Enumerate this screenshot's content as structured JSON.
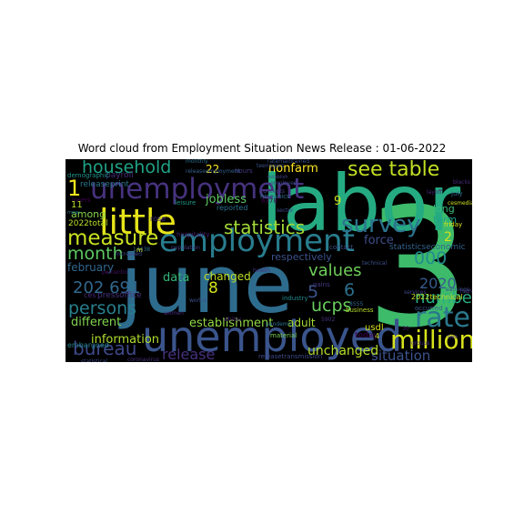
{
  "chart_data": {
    "type": "wordcloud",
    "title": "Word cloud from Employment Situation News Release : 01-06-2022",
    "background": "#000000",
    "words": [
      {
        "text": "3",
        "color": "#3dbb6b"
      },
      {
        "text": "june",
        "color": "#2e6c8e"
      },
      {
        "text": "labor",
        "color": "#25ab82"
      },
      {
        "text": "unemployed",
        "color": "#3a548c"
      },
      {
        "text": "employment",
        "color": "#287d8e"
      },
      {
        "text": "little",
        "color": "#e6e419"
      },
      {
        "text": "unemployment",
        "color": "#46327e"
      },
      {
        "text": "see table",
        "color": "#c2df23"
      },
      {
        "text": "household",
        "color": "#20a386"
      },
      {
        "text": "survey",
        "color": "#2c738e"
      },
      {
        "text": "million",
        "color": "#d8e219"
      },
      {
        "text": "rate",
        "color": "#2a788e"
      },
      {
        "text": "measure",
        "color": "#c8e020"
      },
      {
        "text": "statistics",
        "color": "#a2da37"
      },
      {
        "text": "month",
        "color": "#5ec962"
      },
      {
        "text": "persons",
        "color": "#27808e"
      },
      {
        "text": "bureau",
        "color": "#3e4989"
      },
      {
        "text": "1",
        "color": "#f4e61e"
      },
      {
        "text": "202 691",
        "color": "#31688e"
      },
      {
        "text": "values",
        "color": "#6ece58"
      },
      {
        "text": "000",
        "color": "#228c8d"
      },
      {
        "text": "5",
        "color": "#3a548c"
      },
      {
        "text": "ucps",
        "color": "#67cc5c"
      },
      {
        "text": "6",
        "color": "#2d708e"
      },
      {
        "text": "number",
        "color": "#27ad81"
      },
      {
        "text": "2020",
        "color": "#375b8d"
      },
      {
        "text": "release",
        "color": "#46307e"
      },
      {
        "text": "situation",
        "color": "#3b528b"
      },
      {
        "text": "unchanged",
        "color": "#b5de2b"
      },
      {
        "text": "force",
        "color": "#3d4e8a"
      },
      {
        "text": "different",
        "color": "#7fd34e"
      },
      {
        "text": "information",
        "color": "#b0dd2f"
      },
      {
        "text": "establishment",
        "color": "#90d743"
      },
      {
        "text": "february",
        "color": "#31688e"
      },
      {
        "text": "data",
        "color": "#35b779"
      },
      {
        "text": "changed",
        "color": "#bddf26"
      },
      {
        "text": "nonfarm",
        "color": "#fde725"
      },
      {
        "text": "jobless",
        "color": "#5ec962"
      },
      {
        "text": "respectively",
        "color": "#3b528b"
      },
      {
        "text": "adult",
        "color": "#a5db36"
      },
      {
        "text": "22",
        "color": "#fde725"
      },
      {
        "text": "8",
        "color": "#d2e21b"
      },
      {
        "text": "9",
        "color": "#d5e21a"
      },
      {
        "text": "2",
        "color": "#d2e21b"
      },
      {
        "text": "among",
        "color": "#84d44b"
      },
      {
        "text": "term",
        "color": "#1fa287"
      },
      {
        "text": "long",
        "color": "#38b977"
      },
      {
        "text": "statisticseconomic",
        "color": "#33638d"
      },
      {
        "text": "2022technical",
        "color": "#c8e020"
      },
      {
        "text": "today",
        "color": "#440154"
      },
      {
        "text": "usdl",
        "color": "#d8e219"
      },
      {
        "text": "business",
        "color": "#b8de29"
      },
      {
        "text": "payroll",
        "color": "#472f7d"
      },
      {
        "text": "releaseprint",
        "color": "#2a788e"
      },
      {
        "text": "2022total",
        "color": "#b8de29"
      },
      {
        "text": "pressoffice",
        "color": "#46337f"
      },
      {
        "text": "ces",
        "color": "#482878"
      },
      {
        "text": "embargoed",
        "color": "#26828e"
      },
      {
        "text": "reported",
        "color": "#2d708e"
      },
      {
        "text": "hours",
        "color": "#443a83"
      },
      {
        "text": "hospitality",
        "color": "#481f70"
      },
      {
        "text": "6378",
        "color": "#440154"
      },
      {
        "text": "contact",
        "color": "#3b528b"
      },
      {
        "text": "friday",
        "color": "#dde318"
      },
      {
        "text": "july",
        "color": "#31688e"
      },
      {
        "text": "cesmedia",
        "color": "#d0e11c"
      },
      {
        "text": "services",
        "color": "#3f4788"
      },
      {
        "text": "industry",
        "color": "#23898e"
      },
      {
        "text": "material",
        "color": "#7ad151"
      },
      {
        "text": "pandemic",
        "color": "#2c728e"
      },
      {
        "text": "occurred",
        "color": "#38588c"
      },
      {
        "text": "monthly",
        "color": "#2e6f8e"
      },
      {
        "text": "employed",
        "color": "#3f4889"
      },
      {
        "text": "concepts",
        "color": "#443b84"
      },
      {
        "text": "demographic",
        "color": "#20938c"
      },
      {
        "text": "rose",
        "color": "#46307e"
      },
      {
        "text": "gains",
        "color": "#453781"
      },
      {
        "text": "sector",
        "color": "#3e4a89"
      },
      {
        "text": "higher",
        "color": "#453882"
      },
      {
        "text": "percentin",
        "color": "#471365"
      },
      {
        "text": "releaseemployment",
        "color": "#355f8d"
      },
      {
        "text": "leisure",
        "color": "#1f9a8a"
      },
      {
        "text": "hispanics",
        "color": "#2e6e8e"
      },
      {
        "text": "teenagers",
        "color": "#3b528b"
      },
      {
        "text": "layoff",
        "color": "#482576"
      },
      {
        "text": "losers",
        "color": "#440154"
      },
      {
        "text": "increased",
        "color": "#3f4788"
      },
      {
        "text": "14438",
        "color": "#2d708e"
      },
      {
        "text": "5902",
        "color": "#46337f"
      },
      {
        "text": "8555",
        "color": "#31688e"
      },
      {
        "text": "releasetransmission",
        "color": "#3e4a89"
      },
      {
        "text": "technical",
        "color": "#3b528b"
      },
      {
        "text": "groups",
        "color": "#472f7d"
      },
      {
        "text": "30",
        "color": "#481a6c"
      },
      {
        "text": "two",
        "color": "#46327e"
      },
      {
        "text": "11",
        "color": "#b5de2b"
      },
      {
        "text": "4",
        "color": "#c2df23"
      },
      {
        "text": "m",
        "color": "#d0e11c"
      },
      {
        "text": "population",
        "color": "#433e85"
      },
      {
        "text": "worker",
        "color": "#3a548c"
      },
      {
        "text": "women",
        "color": "#472d7b"
      },
      {
        "text": "health",
        "color": "#46337f"
      },
      {
        "text": "earnings",
        "color": "#3b528b"
      },
      {
        "text": "whites",
        "color": "#482173"
      },
      {
        "text": "statistical",
        "color": "#3e4989"
      },
      {
        "text": "coronavirus",
        "color": "#462f7c"
      },
      {
        "text": "ratemaintained",
        "color": "#3b528b"
      },
      {
        "text": "blacks",
        "color": "#472a7a"
      },
      {
        "text": "mean",
        "color": "#29798e"
      },
      {
        "text": "establish",
        "color": "#404688"
      }
    ]
  }
}
